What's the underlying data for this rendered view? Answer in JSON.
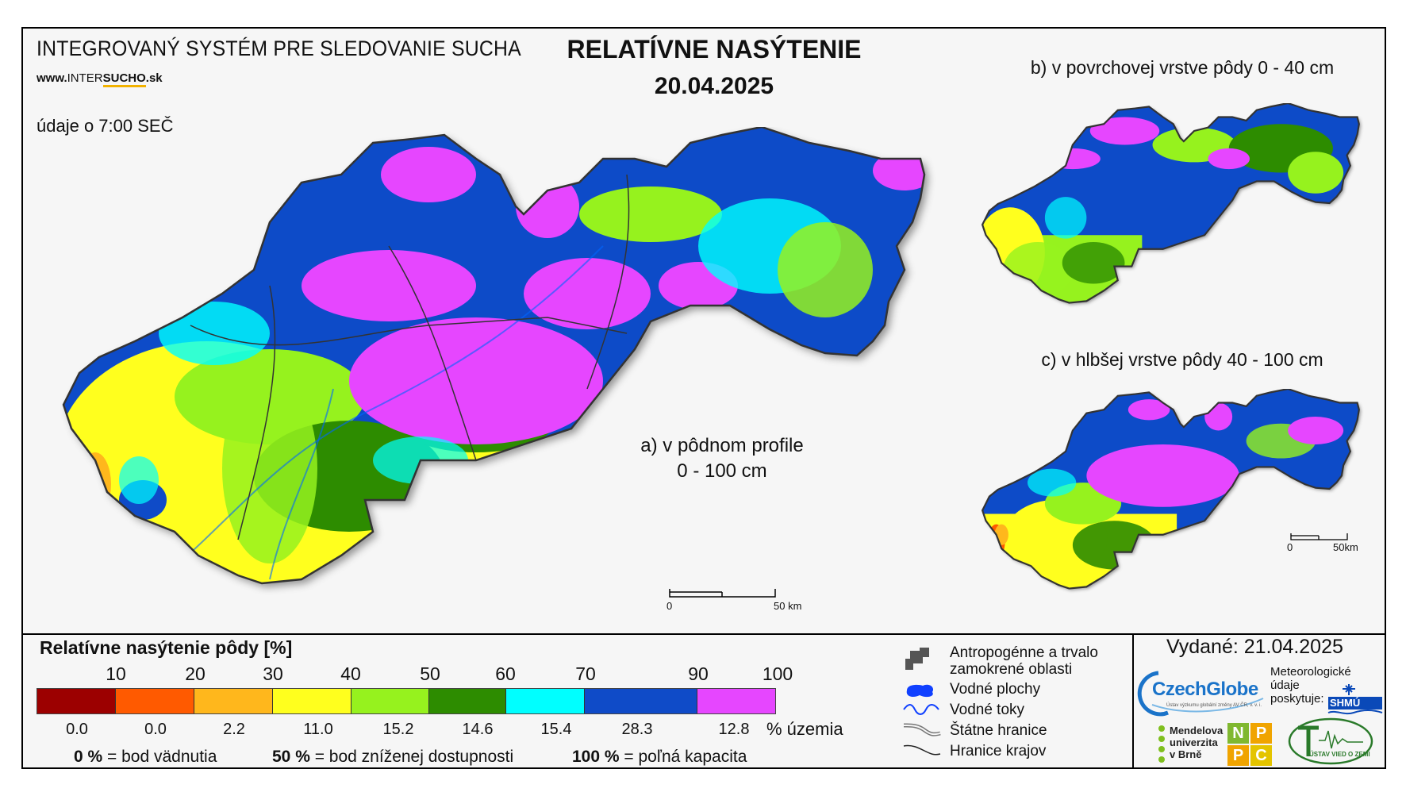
{
  "header": {
    "system_title": "INTEGROVANÝ SYSTÉM PRE SLEDOVANIE SUCHA",
    "url_prefix": "www.",
    "url_mid": "INTER",
    "url_hl": "SUCHO",
    "url_suffix": ".sk",
    "observation_note": "údaje o 7:00 SEČ",
    "main_title": "RELATÍVNE NASÝTENIE",
    "main_date": "20.04.2025"
  },
  "maps": {
    "a_label_line1": "a) v pôdnom profile",
    "a_label_line2": "0 - 100 cm",
    "b_label": "b) v povrchovej vrstve pôdy 0 - 40 cm",
    "c_label": "c) v hlbšej vrstve pôdy 40 - 100 cm",
    "scale_main_zero": "0",
    "scale_main_end": "50 km",
    "scale_small_zero": "0",
    "scale_small_end": "50km"
  },
  "legend": {
    "title": "Relatívne nasýtenie pôdy [%]",
    "ticks": [
      "10",
      "20",
      "30",
      "40",
      "50",
      "60",
      "70",
      "90",
      "100"
    ],
    "classes": [
      {
        "color": "#9c0000",
        "percent": "0.0"
      },
      {
        "color": "#ff5a00",
        "percent": "0.0"
      },
      {
        "color": "#ffb71c",
        "percent": "2.2"
      },
      {
        "color": "#ffff1e",
        "percent": "11.0"
      },
      {
        "color": "#96f21e",
        "percent": "15.2"
      },
      {
        "color": "#2d8c00",
        "percent": "14.6"
      },
      {
        "color": "#00ffff",
        "percent": "15.4"
      },
      {
        "color": "#0f4bc8",
        "percent": "28.3"
      },
      {
        "color": "#e646ff",
        "percent": "12.8"
      }
    ],
    "percent_unit": "% územia",
    "def1_val": "0 %",
    "def1_txt": " = bod vädnutia",
    "def2_val": "50 %",
    "def2_txt": " = bod zníženej dostupnosti",
    "def3_val": "100 %",
    "def3_txt": " = poľná kapacita"
  },
  "map_legend": {
    "anthropogenic_line1": "Antropogénne a trvalo",
    "anthropogenic_line2": "zamokrené oblasti",
    "water_bodies": "Vodné plochy",
    "water_streams": "Vodné toky",
    "state_borders": "Štátne hranice",
    "region_borders": "Hranice krajov"
  },
  "credits": {
    "issued": "Vydané: 21.04.2025",
    "czechglobe": "CzechGlobe",
    "czechglobe_sub": "Ústav výzkumu globální změny AV ČR, v. v. i.",
    "meteo_line1": "Meteorologické",
    "meteo_line2": "údaje",
    "meteo_line3": "poskytuje:",
    "shmu": "SHMÚ",
    "mendel_line1": "Mendelova",
    "mendel_line2": "univerzita",
    "mendel_line3": "v Brně",
    "npp": [
      "N",
      "P",
      "P",
      "C"
    ],
    "uvz": "ÚSTAV VIED O ZEMI"
  }
}
